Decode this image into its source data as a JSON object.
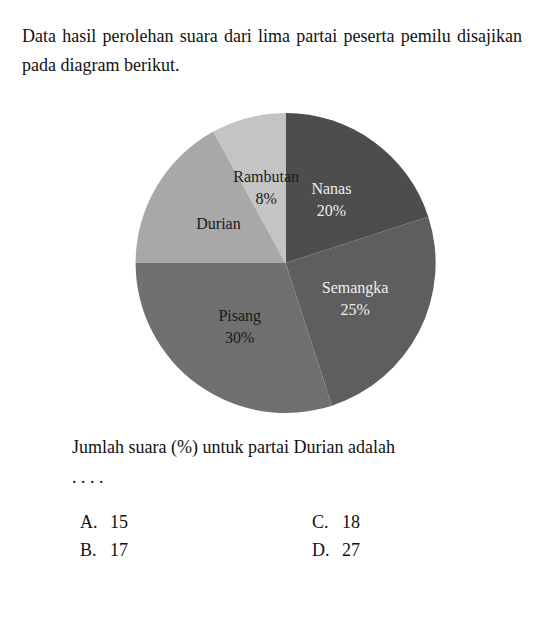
{
  "intro": "Data hasil perolehan suara dari lima partai peserta pemilu disajikan pada diagram berikut.",
  "chart_data": {
    "type": "pie",
    "categories": [
      "Nanas",
      "Semangka",
      "Pisang",
      "Durian",
      "Rambutan"
    ],
    "values": [
      20,
      25,
      30,
      17,
      8
    ],
    "value_labels": [
      "20%",
      "25%",
      "30%",
      null,
      "8%"
    ],
    "colors": [
      "#4d4d4d",
      "#5e5e5e",
      "#707070",
      "#a8a8a8",
      "#c4c4c4"
    ],
    "data_labels": true,
    "legend": false
  },
  "question": "Jumlah suara (%) untuk partai Durian adalah",
  "question_end": ". . . .",
  "options": [
    {
      "letter": "A.",
      "text": "15"
    },
    {
      "letter": "B.",
      "text": "17"
    },
    {
      "letter": "C.",
      "text": "18"
    },
    {
      "letter": "D.",
      "text": "27"
    }
  ]
}
